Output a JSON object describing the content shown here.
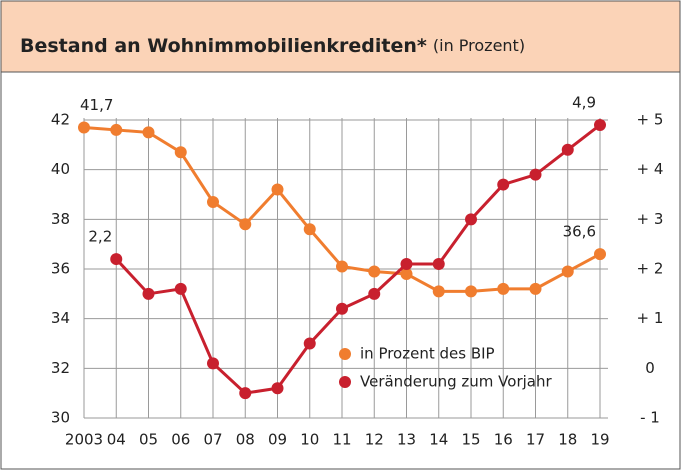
{
  "chart_data": {
    "type": "line",
    "title": "Bestand an Wohnimmobilienkrediten*",
    "subtitle": "(in Prozent)",
    "categories": [
      "2003",
      "04",
      "05",
      "06",
      "07",
      "08",
      "09",
      "10",
      "11",
      "12",
      "13",
      "14",
      "15",
      "16",
      "17",
      "18",
      "19"
    ],
    "series": [
      {
        "name": "in Prozent des BIP",
        "color": "#f07d2f",
        "values": [
          41.7,
          41.6,
          41.5,
          40.7,
          38.7,
          37.8,
          39.2,
          37.6,
          36.1,
          35.9,
          35.8,
          35.1,
          35.1,
          35.2,
          35.2,
          35.9,
          36.6
        ],
        "value_labels": [
          "41,7",
          null,
          null,
          null,
          null,
          null,
          null,
          null,
          null,
          null,
          null,
          null,
          null,
          null,
          null,
          null,
          "36,6"
        ]
      },
      {
        "name": "Veränderung zum Vorjahr",
        "color": "#c8202e",
        "axis": "y2",
        "values": [
          null,
          2.2,
          1.5,
          1.6,
          0.1,
          -0.5,
          -0.4,
          0.5,
          1.2,
          1.5,
          2.1,
          2.1,
          3.0,
          3.7,
          3.9,
          4.4,
          4.9
        ],
        "value_labels": [
          null,
          "2,2",
          null,
          null,
          null,
          null,
          null,
          null,
          null,
          null,
          null,
          null,
          null,
          null,
          null,
          null,
          "4,9"
        ]
      }
    ],
    "ylim": [
      30,
      42
    ],
    "yticks": [
      30,
      32,
      34,
      36,
      38,
      40,
      42
    ],
    "y2lim": [
      -1,
      5
    ],
    "y2ticks": [
      {
        "value": -1,
        "label": "- 1"
      },
      0,
      {
        "value": 1,
        "label": "+ 1"
      },
      {
        "value": 2,
        "label": "+ 2"
      },
      {
        "value": 3,
        "label": "+ 3"
      },
      {
        "value": 4,
        "label": "+ 4"
      },
      {
        "value": 5,
        "label": "+ 5"
      }
    ],
    "grid": true,
    "legend": "lower right"
  }
}
